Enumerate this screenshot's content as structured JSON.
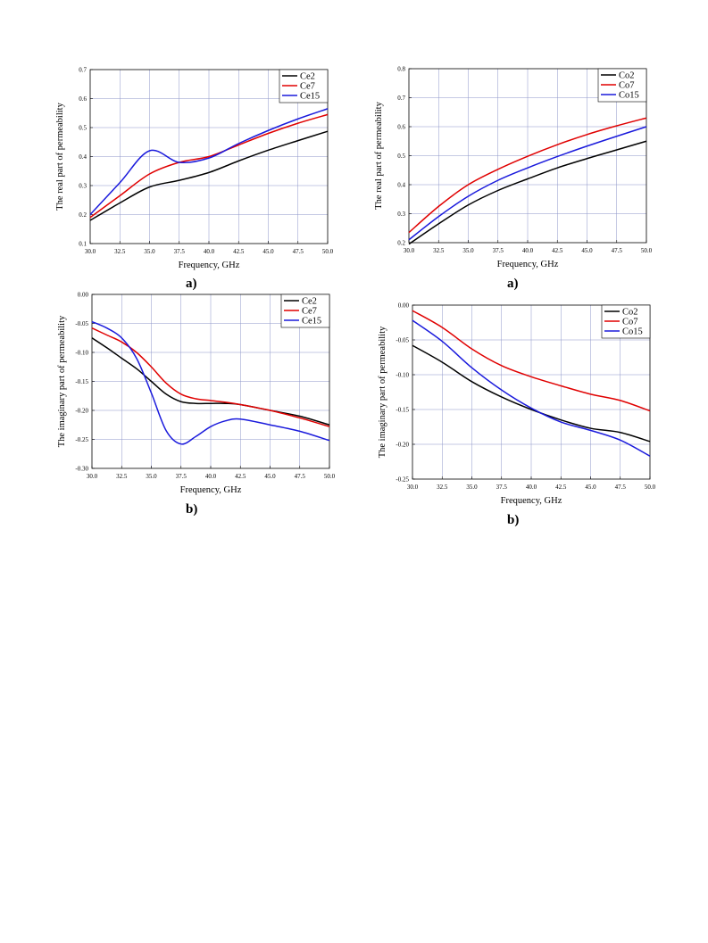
{
  "chart_data": [
    {
      "type": "line",
      "caption": "a)",
      "xlabel": "Frequency, GHz",
      "ylabel": "The real part of permeability",
      "xlim": [
        30.0,
        50.0
      ],
      "ylim": [
        0.1,
        0.7
      ],
      "xticks": [
        "30.0",
        "32.5",
        "35.0",
        "37.5",
        "40.0",
        "42.5",
        "45.0",
        "47.5",
        "50.0"
      ],
      "yticks": [
        "0.1",
        "0.2",
        "0.3",
        "0.4",
        "0.5",
        "0.6",
        "0.7"
      ],
      "grid": true,
      "legend": "top-right",
      "x": [
        30,
        32.5,
        35,
        37.5,
        40,
        42.5,
        45,
        47.5,
        50
      ],
      "series": [
        {
          "name": "Ce2",
          "color": "#000000",
          "values": [
            0.18,
            0.24,
            0.295,
            0.318,
            0.345,
            0.385,
            0.422,
            0.455,
            0.487
          ]
        },
        {
          "name": "Ce7",
          "color": "#e00000",
          "values": [
            0.19,
            0.265,
            0.34,
            0.38,
            0.4,
            0.44,
            0.48,
            0.515,
            0.545
          ]
        },
        {
          "name": "Ce15",
          "color": "#1a1adc",
          "values": [
            0.2,
            0.31,
            0.42,
            0.38,
            0.395,
            0.445,
            0.49,
            0.53,
            0.565
          ]
        }
      ]
    },
    {
      "type": "line",
      "caption": "a)",
      "xlabel": "Frequency, GHz",
      "ylabel": "The real part of permeability",
      "xlim": [
        30.0,
        50.0
      ],
      "ylim": [
        0.2,
        0.8
      ],
      "xticks": [
        "30.0",
        "32.5",
        "35.0",
        "37.5",
        "40.0",
        "42.5",
        "45.0",
        "47.5",
        "50.0"
      ],
      "yticks": [
        "0.2",
        "0.3",
        "0.4",
        "0.5",
        "0.6",
        "0.7",
        "0.8"
      ],
      "grid": true,
      "legend": "top-right",
      "x": [
        30,
        32.5,
        35,
        37.5,
        40,
        42.5,
        45,
        47.5,
        50
      ],
      "series": [
        {
          "name": "Co2",
          "color": "#000000",
          "values": [
            0.195,
            0.265,
            0.33,
            0.38,
            0.42,
            0.458,
            0.49,
            0.52,
            0.55
          ]
        },
        {
          "name": "Co7",
          "color": "#e00000",
          "values": [
            0.235,
            0.325,
            0.4,
            0.453,
            0.498,
            0.538,
            0.573,
            0.603,
            0.63
          ]
        },
        {
          "name": "Co15",
          "color": "#1a1adc",
          "values": [
            0.21,
            0.29,
            0.36,
            0.415,
            0.458,
            0.497,
            0.533,
            0.567,
            0.6
          ]
        }
      ]
    },
    {
      "type": "line",
      "caption": "b)",
      "xlabel": "Frequency, GHz",
      "ylabel": "The imaginary part of permeability",
      "xlim": [
        30.0,
        50.0
      ],
      "ylim": [
        -0.3,
        0.0
      ],
      "xticks": [
        "30.0",
        "32.5",
        "35.0",
        "37.5",
        "40.0",
        "42.5",
        "45.0",
        "47.5",
        "50.0"
      ],
      "yticks": [
        "0.00",
        "-0.05",
        "-0.10",
        "-0.15",
        "-0.20",
        "-0.25",
        "-0.30"
      ],
      "grid": true,
      "legend": "top-right",
      "x": [
        30,
        31.25,
        32.5,
        33.75,
        35,
        36.25,
        37.5,
        38.75,
        40,
        41.25,
        42.5,
        45,
        47.5,
        50
      ],
      "series": [
        {
          "name": "Ce2",
          "color": "#000000",
          "values": [
            -0.075,
            -0.092,
            -0.11,
            -0.128,
            -0.15,
            -0.172,
            -0.185,
            -0.188,
            -0.188,
            -0.188,
            -0.19,
            -0.2,
            -0.21,
            -0.225
          ]
        },
        {
          "name": "Ce7",
          "color": "#e00000",
          "values": [
            -0.058,
            -0.07,
            -0.082,
            -0.1,
            -0.125,
            -0.153,
            -0.172,
            -0.18,
            -0.183,
            -0.186,
            -0.19,
            -0.2,
            -0.213,
            -0.228
          ]
        },
        {
          "name": "Ce15",
          "color": "#1a1adc",
          "values": [
            -0.047,
            -0.058,
            -0.075,
            -0.11,
            -0.17,
            -0.235,
            -0.258,
            -0.245,
            -0.228,
            -0.218,
            -0.215,
            -0.225,
            -0.236,
            -0.252
          ]
        }
      ]
    },
    {
      "type": "line",
      "caption": "b)",
      "xlabel": "Frequency, GHz",
      "ylabel": "The imaginary part of permeability",
      "xlim": [
        30.0,
        50.0
      ],
      "ylim": [
        -0.25,
        0.0
      ],
      "xticks": [
        "30.0",
        "32.5",
        "35.0",
        "37.5",
        "40.0",
        "42.5",
        "45.0",
        "47.5",
        "50.0"
      ],
      "yticks": [
        "0.00",
        "-0.05",
        "-0.10",
        "-0.15",
        "-0.20",
        "-0.25"
      ],
      "grid": true,
      "legend": "top-right",
      "x": [
        30,
        32.5,
        35,
        37.5,
        40,
        42.5,
        45,
        47.5,
        50
      ],
      "series": [
        {
          "name": "Co2",
          "color": "#000000",
          "values": [
            -0.058,
            -0.082,
            -0.11,
            -0.132,
            -0.15,
            -0.165,
            -0.177,
            -0.183,
            -0.196
          ]
        },
        {
          "name": "Co7",
          "color": "#e00000",
          "values": [
            -0.008,
            -0.032,
            -0.063,
            -0.087,
            -0.103,
            -0.116,
            -0.128,
            -0.137,
            -0.152
          ]
        },
        {
          "name": "Co15",
          "color": "#1a1adc",
          "values": [
            -0.022,
            -0.052,
            -0.09,
            -0.122,
            -0.148,
            -0.168,
            -0.18,
            -0.194,
            -0.217
          ]
        }
      ]
    }
  ]
}
